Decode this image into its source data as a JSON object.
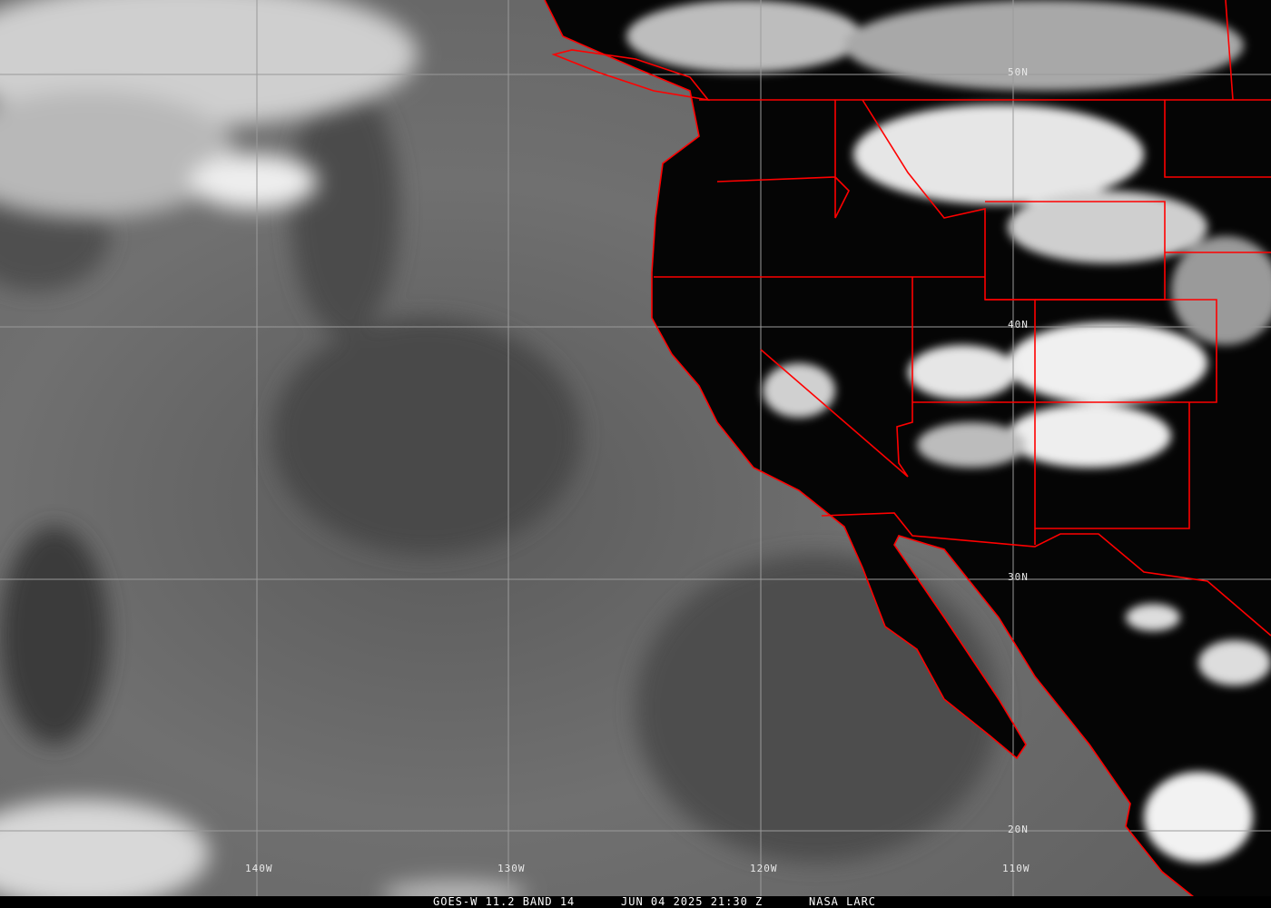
{
  "image": {
    "satellite_label": "GOES-W 11.2 BAND 14",
    "datetime_label": "JUN 04 2025 21:30 Z",
    "credit_label": "NASA LARC"
  },
  "grid": {
    "longitude_labels": [
      "140W",
      "130W",
      "120W",
      "110W"
    ],
    "latitude_labels": [
      "50N",
      "40N",
      "30N",
      "20N"
    ]
  },
  "colors": {
    "borders": "#ff0000",
    "grid": "#9a9a9a",
    "land": "#050505",
    "ocean": "#6e6e6e",
    "cloud": "#f2f2f2"
  }
}
